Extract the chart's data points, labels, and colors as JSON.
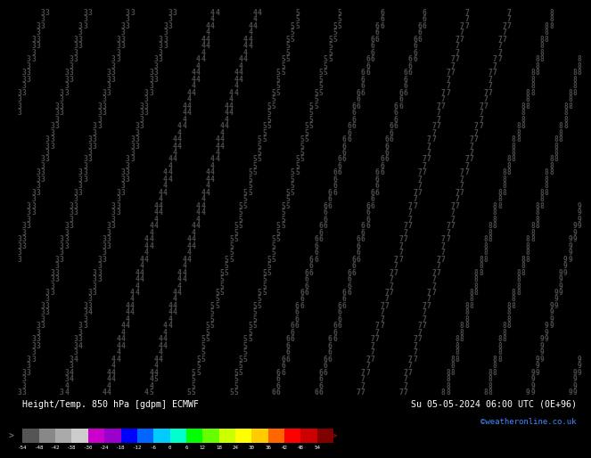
{
  "title_left": "Height/Temp. 850 hPa [gdpm] ECMWF",
  "title_right": "Su 05-05-2024 06:00 UTC (0E+96)",
  "credit": "©weatheronline.co.uk",
  "colorbar_values": [
    -54,
    -48,
    -42,
    -38,
    -30,
    -24,
    -18,
    -12,
    -6,
    0,
    6,
    12,
    18,
    24,
    30,
    36,
    42,
    48,
    54
  ],
  "colorbar_colors": [
    "#555555",
    "#888888",
    "#aaaaaa",
    "#cccccc",
    "#cc00cc",
    "#9900cc",
    "#0000ff",
    "#0066ff",
    "#00ccff",
    "#00ffcc",
    "#00ff00",
    "#66ff00",
    "#ccff00",
    "#ffff00",
    "#ffcc00",
    "#ff6600",
    "#ff0000",
    "#cc0000",
    "#800000"
  ],
  "bg_color": "#ffdd00",
  "digit_color": "#000000",
  "contour_color": "#666666",
  "figure_bg": "#ffdd00",
  "bottom_bg": "#000000",
  "cols": 120,
  "rows": 58,
  "font_size": 5.8
}
